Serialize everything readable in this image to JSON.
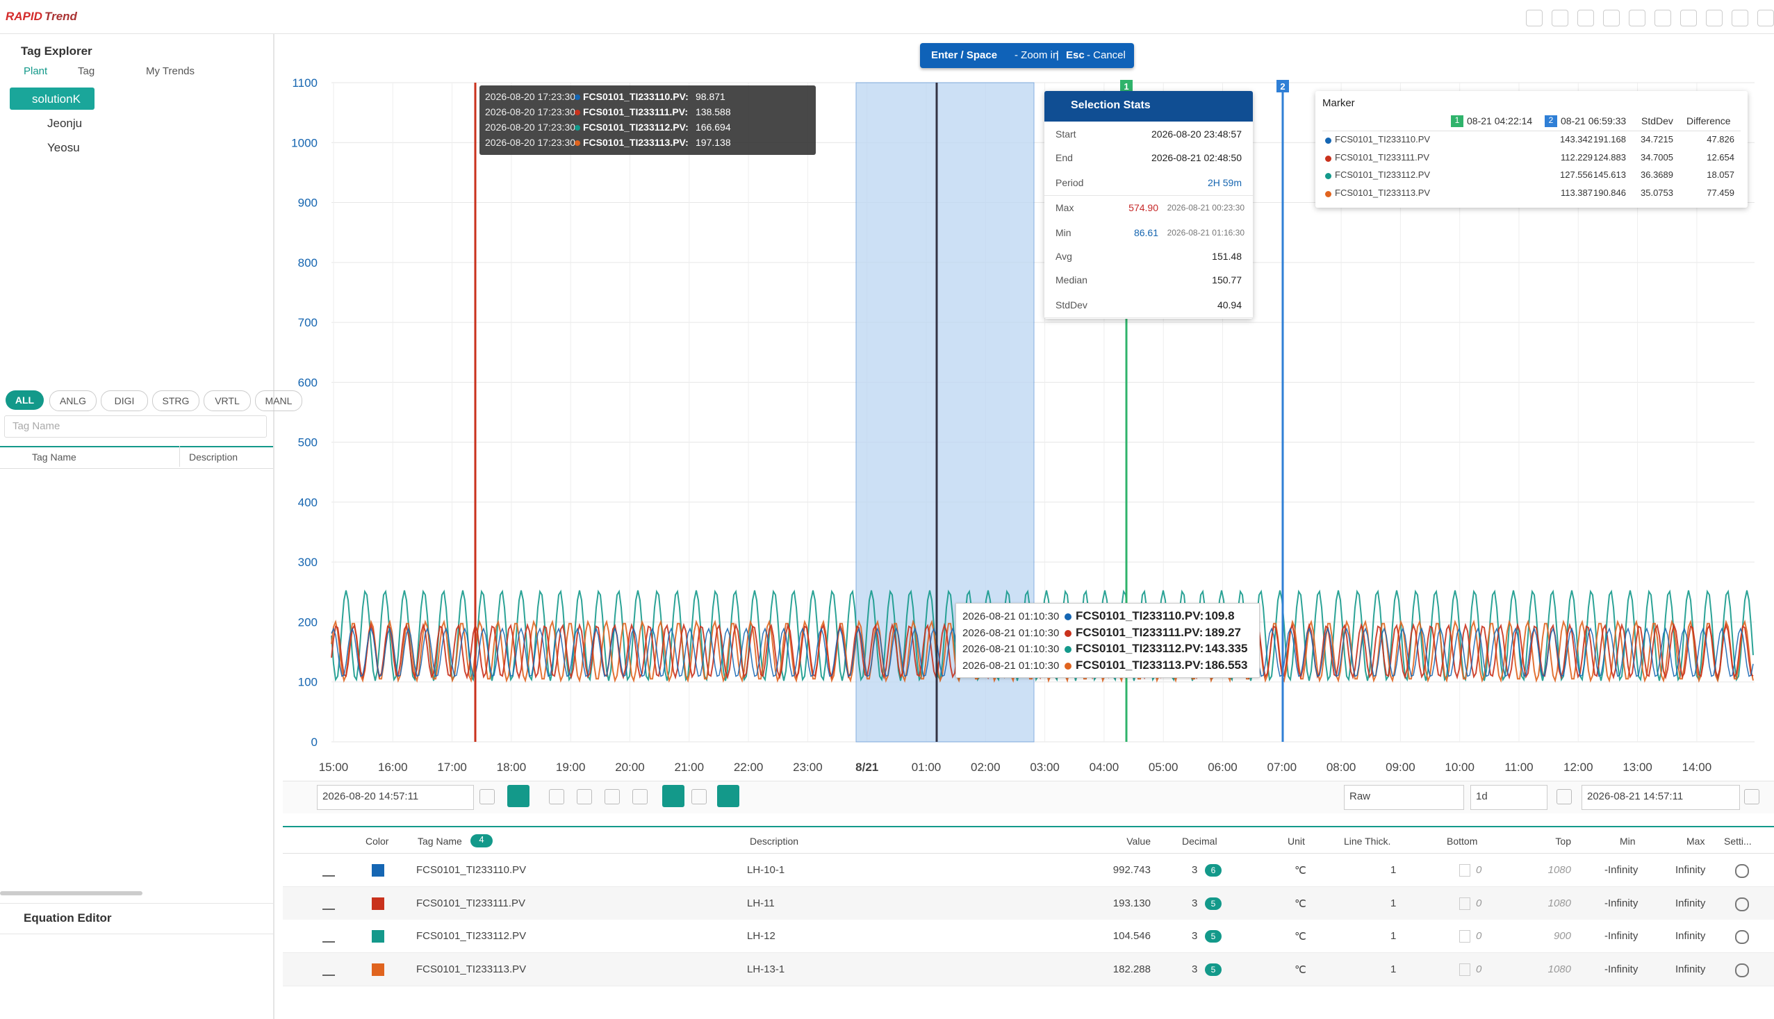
{
  "app": {
    "logo_1": "RAPID",
    "logo_2": "Trend"
  },
  "explorer": {
    "title": "Tag Explorer",
    "tabs": [
      "Plant",
      "Tag",
      "My Trends"
    ],
    "tree": [
      "solutionK",
      "Jeonju",
      "Yeosu"
    ],
    "filters": [
      "ALL",
      "ANLG",
      "DIGI",
      "STRG",
      "VRTL",
      "MANL"
    ],
    "search_placeholder": "Tag Name",
    "columns": [
      "Tag Name",
      "Description"
    ]
  },
  "equation_editor": {
    "title": "Equation Editor"
  },
  "hint": {
    "keys": "Enter / Space",
    "zoom": "- Zoom in",
    "sep": "|",
    "esc": "Esc",
    "cancel": "- Cancel"
  },
  "chart_data": {
    "type": "line",
    "ylim": [
      0,
      1100
    ],
    "yticks": [
      0,
      100,
      200,
      300,
      400,
      500,
      600,
      700,
      800,
      900,
      1000,
      1100
    ],
    "categories": [
      "15:00",
      "16:00",
      "17:00",
      "18:00",
      "19:00",
      "20:00",
      "21:00",
      "22:00",
      "23:00",
      "8/21",
      "01:00",
      "02:00",
      "03:00",
      "04:00",
      "05:00",
      "06:00",
      "07:00",
      "08:00",
      "09:00",
      "10:00",
      "11:00",
      "12:00",
      "13:00",
      "14:00"
    ],
    "grid": true,
    "marker_labels": [
      "1",
      "2"
    ]
  },
  "top_tooltip": {
    "rows": [
      {
        "time": "2026-08-20 17:23:30",
        "tag": "FCS0101_TI233110.PV:",
        "value": 98.871
      },
      {
        "time": "2026-08-20 17:23:30",
        "tag": "FCS0101_TI233111.PV:",
        "value": 138.588
      },
      {
        "time": "2026-08-20 17:23:30",
        "tag": "FCS0101_TI233112.PV:",
        "value": 166.694
      },
      {
        "time": "2026-08-20 17:23:30",
        "tag": "FCS0101_TI233113.PV:",
        "value": 197.138
      }
    ]
  },
  "hover_tooltip": {
    "rows": [
      {
        "time": "2026-08-21 01:10:30",
        "tag": "FCS0101_TI233110.PV:",
        "value": 109.8
      },
      {
        "time": "2026-08-21 01:10:30",
        "tag": "FCS0101_TI233111.PV:",
        "value": 189.27
      },
      {
        "time": "2026-08-21 01:10:30",
        "tag": "FCS0101_TI233112.PV:",
        "value": 143.335
      },
      {
        "time": "2026-08-21 01:10:30",
        "tag": "FCS0101_TI233113.PV:",
        "value": 186.553
      }
    ]
  },
  "selection_stats": {
    "title": "Selection Stats",
    "rows": [
      {
        "label": "Start",
        "value": "2026-08-20 23:48:57"
      },
      {
        "label": "End",
        "value": "2026-08-21 02:48:50"
      },
      {
        "label": "Period",
        "value": "2H 59m"
      },
      {
        "label": "Max",
        "value": "574.90",
        "time": "2026-08-21 00:23:30"
      },
      {
        "label": "Min",
        "value": "86.61",
        "time": "2026-08-21 01:16:30"
      },
      {
        "label": "Avg",
        "value": "151.48"
      },
      {
        "label": "Median",
        "value": "150.77"
      },
      {
        "label": "StdDev",
        "value": "40.94"
      }
    ]
  },
  "marker": {
    "title": "Marker",
    "m1": "1",
    "t1": "08-21 04:22:14",
    "m2": "2",
    "t2": "08-21 06:59:33",
    "std": "StdDev",
    "diff": "Difference",
    "rows": [
      {
        "tag": "FCS0101_TI233110.PV",
        "v1": "143.342",
        "v2": "191.168",
        "std": "34.7215",
        "diff": "47.826"
      },
      {
        "tag": "FCS0101_TI233111.PV",
        "v1": "112.229",
        "v2": "124.883",
        "std": "34.7005",
        "diff": "12.654"
      },
      {
        "tag": "FCS0101_TI233112.PV",
        "v1": "127.556",
        "v2": "145.613",
        "std": "36.3689",
        "diff": "18.057"
      },
      {
        "tag": "FCS0101_TI233113.PV",
        "v1": "113.387",
        "v2": "190.846",
        "std": "35.0753",
        "diff": "77.459"
      }
    ]
  },
  "toolbar": {
    "start": "2026-08-20 14:57:11",
    "mode": "Raw",
    "span": "1d",
    "end": "2026-08-21 14:57:11"
  },
  "table": {
    "count": "4",
    "columns": {
      "color": "Color",
      "tag": "Tag Name",
      "desc": "Description",
      "value": "Value",
      "decimal": "Decimal",
      "unit": "Unit",
      "thick": "Line Thick.",
      "bottom": "Bottom",
      "top": "Top",
      "min": "Min",
      "max": "Max",
      "set": "Setti..."
    },
    "rows": [
      {
        "color": "#1566b3",
        "tag": "FCS0101_TI233110.PV",
        "desc": "LH-10-1",
        "value": "992.743",
        "decimal": "3",
        "badge": "6",
        "unit": "℃",
        "thick": "1",
        "bottom": "0",
        "top": "1080",
        "min": "-Infinity",
        "max": "Infinity"
      },
      {
        "color": "#c9321d",
        "tag": "FCS0101_TI233111.PV",
        "desc": "LH-11",
        "value": "193.130",
        "decimal": "3",
        "badge": "5",
        "unit": "℃",
        "thick": "1",
        "bottom": "0",
        "top": "1080",
        "min": "-Infinity",
        "max": "Infinity"
      },
      {
        "color": "#14998b",
        "tag": "FCS0101_TI233112.PV",
        "desc": "LH-12",
        "value": "104.546",
        "decimal": "3",
        "badge": "5",
        "unit": "℃",
        "thick": "1",
        "bottom": "0",
        "top": "900",
        "min": "-Infinity",
        "max": "Infinity"
      },
      {
        "color": "#e0641f",
        "tag": "FCS0101_TI233113.PV",
        "desc": "LH-13-1",
        "value": "182.288",
        "decimal": "3",
        "badge": "5",
        "unit": "℃",
        "thick": "1",
        "bottom": "0",
        "top": "1080",
        "min": "-Infinity",
        "max": "Infinity"
      }
    ]
  }
}
